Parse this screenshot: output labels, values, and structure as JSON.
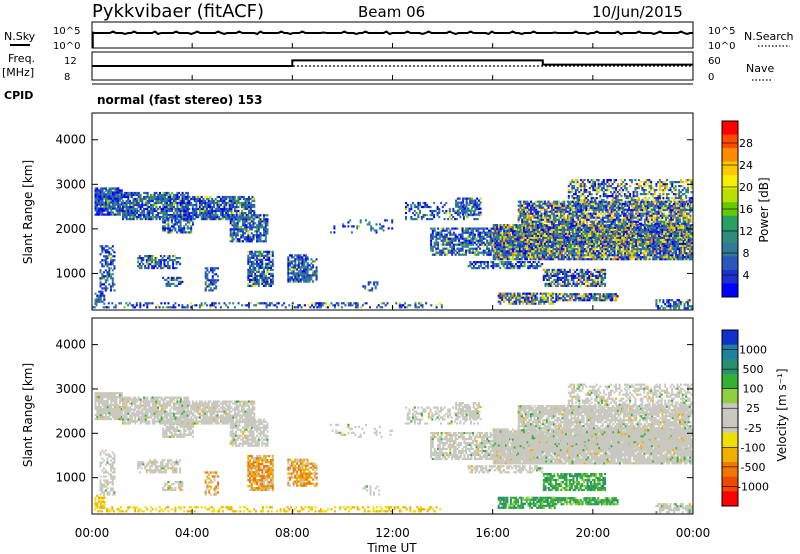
{
  "header": {
    "title": "Pykkvibaer (fitACF)",
    "beam": "Beam 06",
    "date": "10/Jun/2015"
  },
  "noise_panel": {
    "left_label": "N.Sky",
    "right_label": "N.Search",
    "left_ticks": [
      "10^5",
      "10^0"
    ],
    "right_ticks": [
      "10^5",
      "10^0"
    ]
  },
  "freq_panel": {
    "left_label_1": "Freq.",
    "left_label_2": "[MHz]",
    "right_label": "Nave",
    "left_ticks": [
      "12",
      "8"
    ],
    "right_ticks": [
      "60",
      "0"
    ],
    "freq_steps": [
      {
        "t0": 0,
        "t1": 8.0,
        "mhz": 10.0
      },
      {
        "t0": 8.0,
        "t1": 18.0,
        "mhz": 10.8
      },
      {
        "t0": 18.0,
        "t1": 24.0,
        "mhz": 10.2
      }
    ]
  },
  "cpid_panel": {
    "label": "CPID",
    "mode": "normal (fast stereo) 153"
  },
  "chart_data": [
    {
      "type": "heatmap",
      "name": "power",
      "ylabel": "Slant Range [km]",
      "ylim": [
        180,
        4600
      ],
      "yticks": [
        1000,
        2000,
        3000,
        4000
      ],
      "xlim": [
        0,
        24
      ],
      "colorbar_label": "Power [dB]",
      "colorbar_ticks": [
        "28",
        "24",
        "20",
        "16",
        "12",
        "8",
        "4"
      ],
      "colorbar_colors": [
        "#ff0000",
        "#ff4a00",
        "#ff8c00",
        "#ffc800",
        "#f5ee00",
        "#b9e000",
        "#66c800",
        "#28a060",
        "#2e8c78",
        "#2f7a9a",
        "#2b58b8",
        "#1f30d0",
        "#0000ff"
      ]
    },
    {
      "type": "heatmap",
      "name": "velocity",
      "ylabel": "Slant Range [km]",
      "ylim": [
        180,
        4600
      ],
      "yticks": [
        1000,
        2000,
        3000,
        4000
      ],
      "xlim": [
        0,
        24
      ],
      "xlabel": "Time UT",
      "xticks": [
        "00:00",
        "04:00",
        "08:00",
        "12:00",
        "16:00",
        "20:00",
        "00:00"
      ],
      "colorbar_label": "Velocity [m s⁻¹]",
      "colorbar_ticks": [
        "1000",
        "500",
        "100",
        "25",
        "-25",
        "-100",
        "-500",
        "-1000"
      ],
      "colorbar_colors": [
        "#1030c8",
        "#2080a0",
        "#289070",
        "#34b034",
        "#90d040",
        "#c8c8c0",
        "#c8c8c0",
        "#f0e000",
        "#f0b000",
        "#f07800",
        "#f04800",
        "#ff0000"
      ]
    }
  ]
}
